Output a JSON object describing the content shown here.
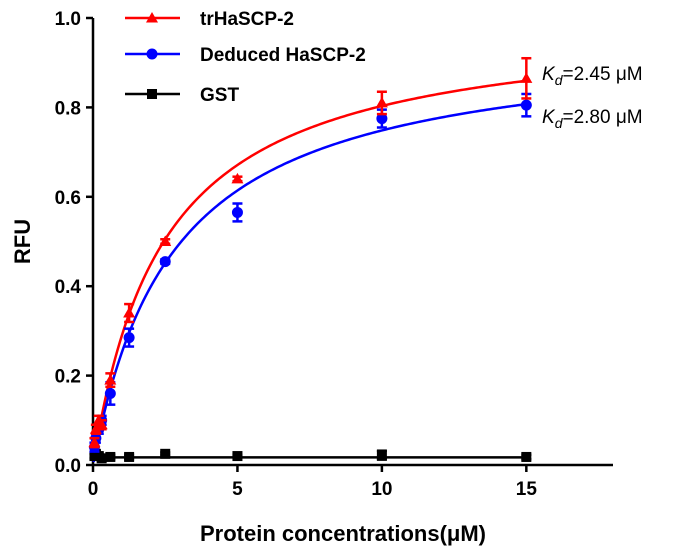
{
  "chart_data": {
    "type": "scatter",
    "xlabel": "Protein concentrations(μM)",
    "ylabel": "RFU",
    "xlim": [
      0,
      18
    ],
    "ylim": [
      0,
      1.0
    ],
    "x_ticks": [
      "0",
      "5",
      "10",
      "15"
    ],
    "x_tick_values": [
      0,
      5,
      10,
      15
    ],
    "y_ticks": [
      "0.0",
      "0.2",
      "0.4",
      "0.6",
      "0.8",
      "1.0"
    ],
    "y_tick_values": [
      0,
      0.2,
      0.4,
      0.6,
      0.8,
      1.0
    ],
    "grid": false,
    "legend_position": "top-left",
    "series": [
      {
        "name": "trHaSCP-2",
        "color": "#ff0000",
        "marker": "triangle",
        "x": [
          0.05,
          0.1,
          0.2,
          0.3,
          0.6,
          1.25,
          2.5,
          5,
          10,
          15
        ],
        "y": [
          0.05,
          0.08,
          0.1,
          0.09,
          0.19,
          0.34,
          0.5,
          0.64,
          0.81,
          0.865
        ],
        "error": [
          0.01,
          0.01,
          0.01,
          0.01,
          0.015,
          0.02,
          0.005,
          0.005,
          0.025,
          0.045
        ],
        "fit": {
          "model": "one-site binding",
          "bmax": 1.0,
          "kd": 2.45
        }
      },
      {
        "name": "Deduced HaSCP-2",
        "color": "#0000ff",
        "marker": "circle",
        "x": [
          0.05,
          0.1,
          0.2,
          0.3,
          0.6,
          1.25,
          2.5,
          5,
          10,
          15
        ],
        "y": [
          0.04,
          0.06,
          0.08,
          0.1,
          0.16,
          0.285,
          0.455,
          0.565,
          0.775,
          0.805
        ],
        "error": [
          0.01,
          0.01,
          0.01,
          0.01,
          0.025,
          0.02,
          0.005,
          0.02,
          0.02,
          0.025
        ],
        "fit": {
          "model": "one-site binding",
          "bmax": 0.958,
          "kd": 2.8
        }
      },
      {
        "name": "GST",
        "color": "#000000",
        "marker": "square",
        "x": [
          0.05,
          0.1,
          0.2,
          0.3,
          0.6,
          1.25,
          2.5,
          5,
          10,
          15
        ],
        "y": [
          0.02,
          0.025,
          0.02,
          0.015,
          0.018,
          0.018,
          0.025,
          0.02,
          0.022,
          0.018
        ],
        "error": [
          0.005,
          0.005,
          0.005,
          0.005,
          0.005,
          0.005,
          0.003,
          0.003,
          0.01,
          0.005
        ],
        "fit": {
          "model": "flat",
          "value": 0.017
        }
      }
    ],
    "annotations": [
      {
        "series": "trHaSCP-2",
        "symbol": "K",
        "subscript": "d",
        "text": "=2.45 μM"
      },
      {
        "series": "Deduced HaSCP-2",
        "symbol": "K",
        "subscript": "d",
        "text": "=2.80 μM"
      }
    ]
  }
}
